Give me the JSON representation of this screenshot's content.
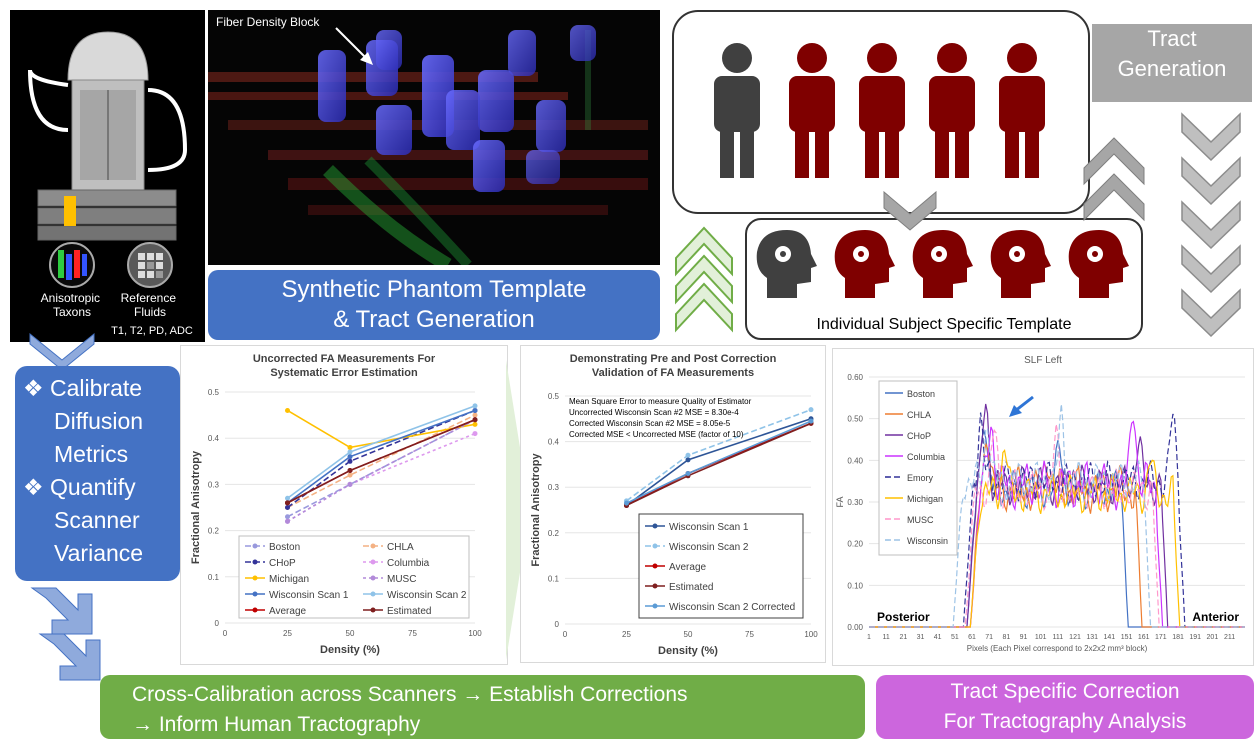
{
  "phantom": {
    "label_anisotropic": "Anisotropic Taxons",
    "label_reference": "Reference Fluids",
    "label_sequences": "T1, T2, PD, ADC"
  },
  "fiber_panel": {
    "annotation": "Fiber Density Block"
  },
  "synthetic_box": {
    "line1": "Synthetic Phantom Template",
    "line2": "& Tract Generation"
  },
  "tract_generation": {
    "line1": "Tract",
    "line2": "Generation"
  },
  "individual_template": {
    "label": "Individual Subject Specific Template"
  },
  "calibration_box": {
    "item1": [
      "Calibrate",
      "Diffusion",
      "Metrics"
    ],
    "item2": [
      "Quantify",
      "Scanner",
      "Variance"
    ]
  },
  "cross_box": {
    "line1": "Cross-Calibration across Scanners → Establish Corrections",
    "line2": "→ Inform Human Tractography"
  },
  "tract_correction_box": {
    "line1": "Tract Specific Correction",
    "line2": "For Tractography Analysis"
  },
  "colors": {
    "blue": "#4472c4",
    "green": "#70ad47",
    "purple": "#cc66dd",
    "grey": "#a6a6a6",
    "maroon": "#7f0000",
    "dark": "#404040"
  },
  "chart_data": [
    {
      "type": "line",
      "title": "Uncorrected FA Measurements For Systematic Error Estimation",
      "xlabel": "Density (%)",
      "ylabel": "Fractional Anisotropy",
      "x": [
        25,
        50,
        100
      ],
      "xlim": [
        0,
        100
      ],
      "ylim": [
        0,
        0.5
      ],
      "xticks": [
        "0",
        "25",
        "50",
        "75",
        "100"
      ],
      "yticks": [
        "0",
        "0.1",
        "0.2",
        "0.3",
        "0.4",
        "0.5"
      ],
      "legend": "bottom-center",
      "series": [
        {
          "name": "Boston",
          "color": "#9999dd",
          "dash": "6,3",
          "values": [
            0.23,
            0.3,
            0.44
          ]
        },
        {
          "name": "CHLA",
          "color": "#f4b183",
          "dash": "6,3",
          "values": [
            0.25,
            0.32,
            0.45
          ]
        },
        {
          "name": "CHoP",
          "color": "#333399",
          "dash": "6,3",
          "values": [
            0.25,
            0.35,
            0.46
          ]
        },
        {
          "name": "Columbia",
          "color": "#dd99ee",
          "dash": "3,3",
          "values": [
            0.22,
            0.3,
            0.41
          ]
        },
        {
          "name": "Michigan",
          "color": "#ffc000",
          "dash": "",
          "values": [
            0.46,
            0.38,
            0.43
          ]
        },
        {
          "name": "MUSC",
          "color": "#b28ad9",
          "dash": "3,3",
          "values": [
            0.22,
            0.3,
            0.44
          ]
        },
        {
          "name": "Wisconsin Scan 1",
          "color": "#4472c4",
          "dash": "",
          "values": [
            0.26,
            0.36,
            0.46
          ]
        },
        {
          "name": "Wisconsin Scan 2",
          "color": "#8fc3e8",
          "dash": "",
          "values": [
            0.27,
            0.37,
            0.47
          ]
        },
        {
          "name": "Average",
          "color": "#c00000",
          "dash": "",
          "values": [
            0.26,
            0.33,
            0.44
          ]
        },
        {
          "name": "Estimated",
          "color": "#7f1f1f",
          "dash": "",
          "values": [
            0.26,
            0.33,
            0.44
          ]
        }
      ]
    },
    {
      "type": "line",
      "title": "Demonstrating Pre and Post Correction Validation of FA Measurements",
      "xlabel": "Density (%)",
      "ylabel": "Fractional Anisotropy",
      "x": [
        25,
        50,
        100
      ],
      "xlim": [
        0,
        100
      ],
      "ylim": [
        0,
        0.5
      ],
      "xticks": [
        "0",
        "25",
        "50",
        "75",
        "100"
      ],
      "yticks": [
        "0",
        "0.1",
        "0.2",
        "0.3",
        "0.4",
        "0.5"
      ],
      "legend": "bottom-right",
      "annotations": [
        "Mean Square Error to measure Quality of Estimator",
        "Uncorrected Wisconsin Scan #2 MSE = 8.30e-4",
        "Corrected Wisconsin Scan #2 MSE = 8.05e-5",
        "Corrected MSE < Uncorrected MSE (factor of 10)"
      ],
      "series": [
        {
          "name": "Wisconsin Scan 1",
          "color": "#2e5597",
          "dash": "",
          "values": [
            0.26,
            0.36,
            0.45
          ]
        },
        {
          "name": "Wisconsin Scan 2",
          "color": "#8fc3e8",
          "dash": "6,3",
          "values": [
            0.27,
            0.37,
            0.47
          ]
        },
        {
          "name": "Average",
          "color": "#c00000",
          "dash": "",
          "values": [
            0.26,
            0.33,
            0.44
          ]
        },
        {
          "name": "Estimated",
          "color": "#7f1f1f",
          "dash": "",
          "values": [
            0.26,
            0.325,
            0.44
          ]
        },
        {
          "name": "Wisconsin Scan 2 Corrected",
          "color": "#5b9bd5",
          "dash": "",
          "values": [
            0.265,
            0.33,
            0.445
          ]
        }
      ]
    },
    {
      "type": "line",
      "title": "SLF Left",
      "xlabel": "Pixels (Each Pixel correspond to 2x2x2 mm³ block)",
      "ylabel": "FA",
      "ylim": [
        0,
        0.6
      ],
      "xlim": [
        1,
        220
      ],
      "yticks": [
        "0.00",
        "0.10",
        "0.20",
        "0.30",
        "0.40",
        "0.50",
        "0.60"
      ],
      "xticks": [
        "1",
        "11",
        "21",
        "31",
        "41",
        "51",
        "61",
        "71",
        "81",
        "91",
        "101",
        "111",
        "121",
        "131",
        "141",
        "151",
        "161",
        "171",
        "181",
        "191",
        "201",
        "211"
      ],
      "legend": "top-left",
      "annotations": [
        "Posterior",
        "Anterior"
      ],
      "series": [
        {
          "name": "Boston",
          "color": "#4472c4",
          "dash": "",
          "start": 58,
          "end": 152,
          "base": 0.33,
          "amp": 0.05,
          "peaks": [
            [
              68,
              0.52
            ],
            [
              112,
              0.44
            ]
          ]
        },
        {
          "name": "CHLA",
          "color": "#ed7d31",
          "dash": "",
          "start": 60,
          "end": 160,
          "base": 0.33,
          "amp": 0.06,
          "peaks": [
            [
              70,
              0.48
            ],
            [
              105,
              0.42
            ]
          ]
        },
        {
          "name": "CHoP",
          "color": "#7030a0",
          "dash": "",
          "start": 58,
          "end": 175,
          "base": 0.34,
          "amp": 0.05,
          "peaks": [
            [
              69,
              0.55
            ],
            [
              158,
              0.45
            ]
          ]
        },
        {
          "name": "Columbia",
          "color": "#cc33ff",
          "dash": "",
          "start": 60,
          "end": 172,
          "base": 0.34,
          "amp": 0.06,
          "peaks": [
            [
              72,
              0.5
            ],
            [
              155,
              0.54
            ]
          ]
        },
        {
          "name": "Emory",
          "color": "#333399",
          "dash": "6,3",
          "start": 56,
          "end": 185,
          "base": 0.35,
          "amp": 0.05,
          "peaks": [
            [
              66,
              0.5
            ],
            [
              178,
              0.51
            ]
          ]
        },
        {
          "name": "Michigan",
          "color": "#ffc000",
          "dash": "",
          "start": 60,
          "end": 182,
          "base": 0.32,
          "amp": 0.05,
          "peaks": [
            [
              80,
              0.44
            ],
            [
              165,
              0.4
            ]
          ]
        },
        {
          "name": "MUSC",
          "color": "#ff99cc",
          "dash": "6,3",
          "start": 57,
          "end": 170,
          "base": 0.33,
          "amp": 0.05,
          "peaks": [
            [
              74,
              0.47
            ],
            [
              110,
              0.45
            ]
          ]
        },
        {
          "name": "Wisconsin",
          "color": "#9dc3e6",
          "dash": "6,3",
          "start": 50,
          "end": 165,
          "base": 0.35,
          "amp": 0.05,
          "peaks": [
            [
              70,
              0.5
            ],
            [
              113,
              0.5
            ]
          ]
        }
      ]
    }
  ]
}
